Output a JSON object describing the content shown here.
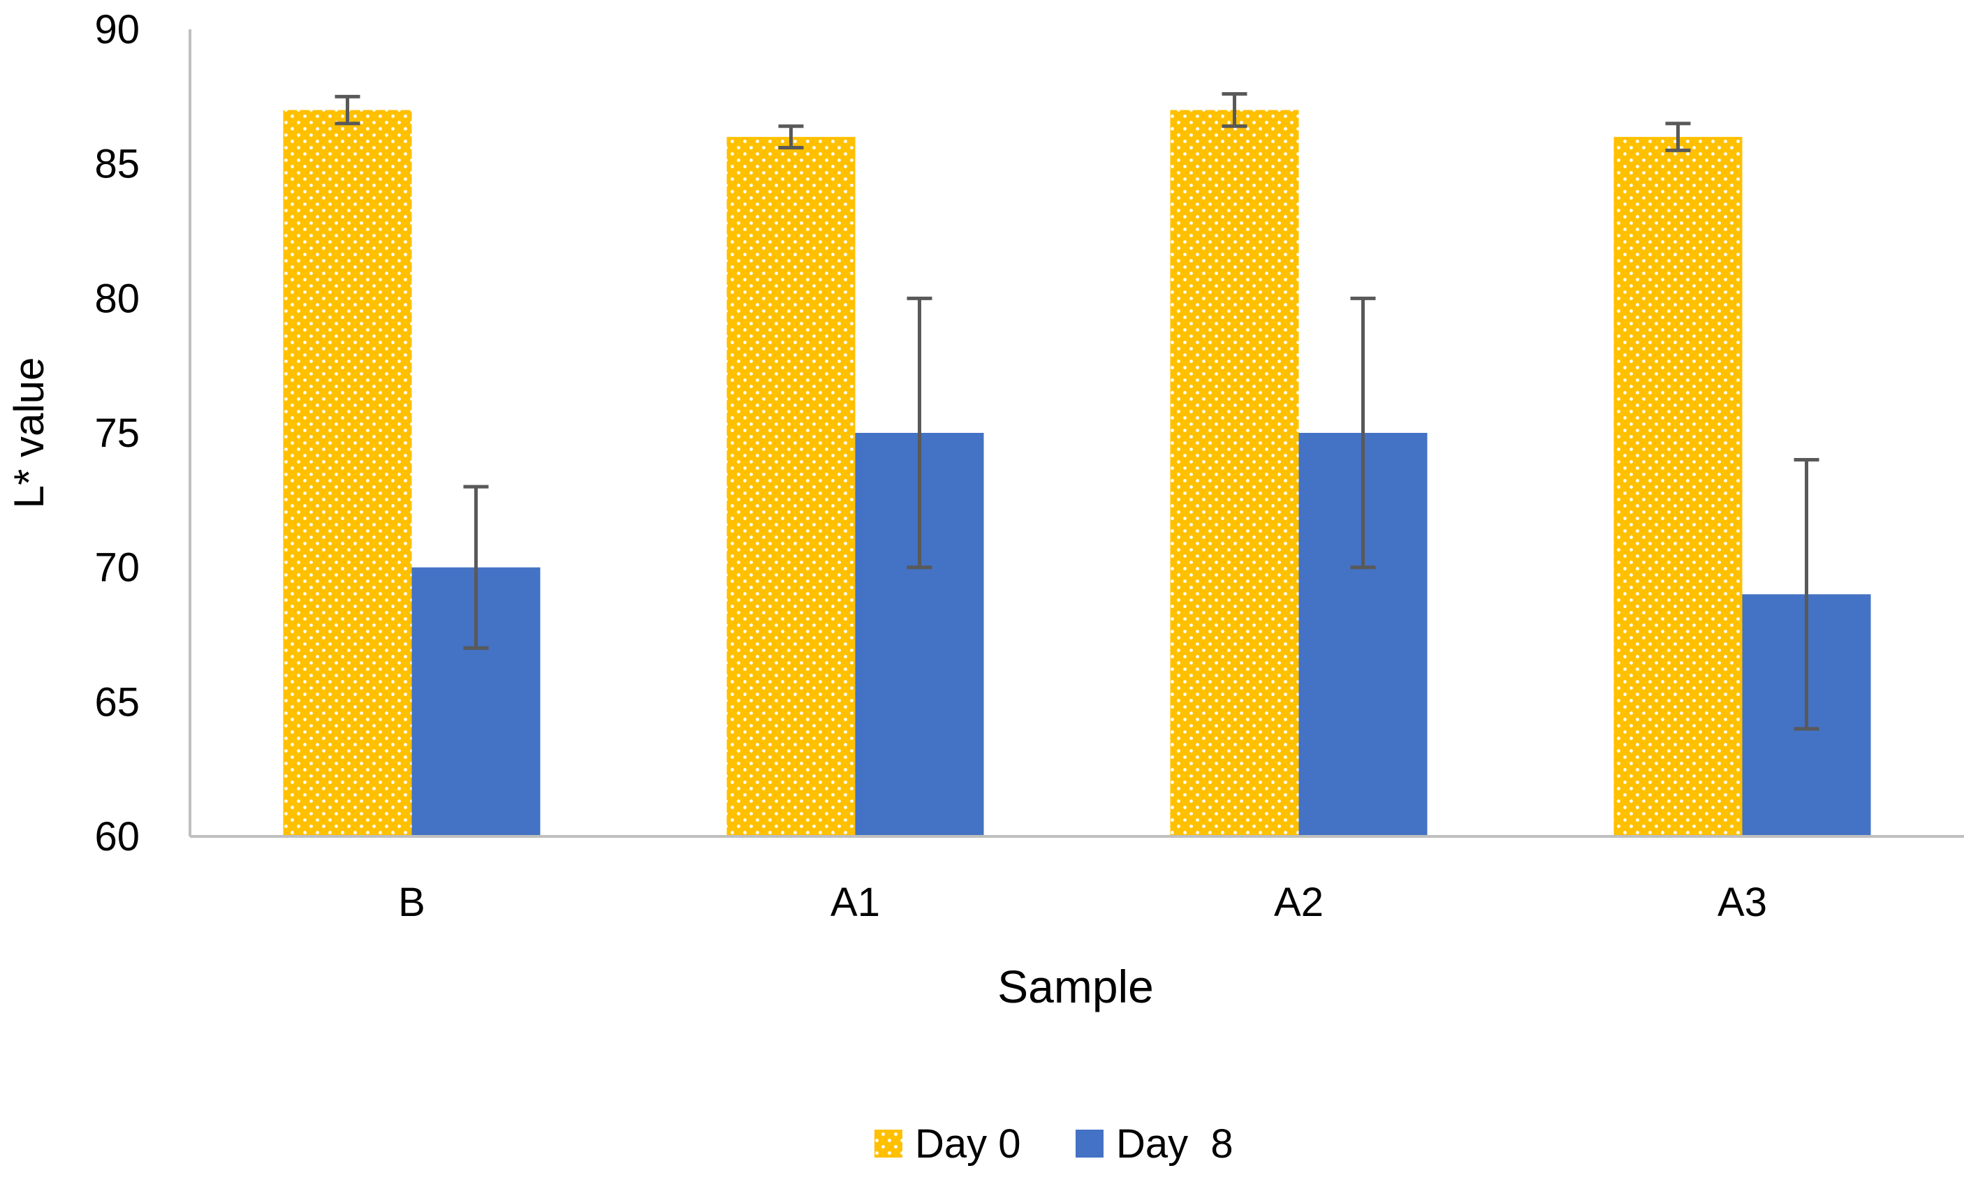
{
  "chart_data": {
    "type": "bar",
    "title": "",
    "xlabel": "Sample",
    "ylabel": "L* value",
    "ylim": [
      60,
      90
    ],
    "yticks": [
      "60",
      "65",
      "70",
      "75",
      "80",
      "85",
      "90"
    ],
    "categories": [
      "B",
      "A1",
      "A2",
      "A3"
    ],
    "legend_position": "bottom",
    "series": [
      {
        "name": "Day 0",
        "color": "#FFC000",
        "pattern": "dotted",
        "values": [
          87,
          86,
          87,
          86
        ],
        "errors": [
          0.5,
          0.4,
          0.6,
          0.5
        ]
      },
      {
        "name": "Day  8",
        "color": "#4472C4",
        "pattern": "solid",
        "values": [
          70,
          75,
          75,
          69
        ],
        "errors": [
          3,
          5,
          5,
          5
        ]
      }
    ]
  }
}
